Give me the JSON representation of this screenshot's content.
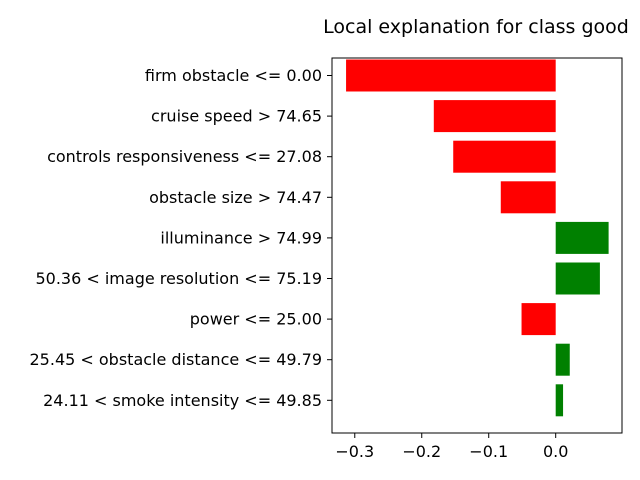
{
  "chart_data": {
    "type": "bar",
    "orientation": "horizontal",
    "title": "Local explanation for class good",
    "xlabel": "",
    "ylabel": "",
    "grid": false,
    "categories": [
      "firm obstacle <= 0.00",
      "cruise speed > 74.65",
      "controls responsiveness <= 27.08",
      "obstacle size > 74.47",
      "illuminance > 74.99",
      "50.36 < image resolution <= 75.19",
      "power <= 25.00",
      "25.45 < obstacle distance <= 49.79",
      "24.11 < smoke intensity <= 49.85"
    ],
    "values": [
      -0.313,
      -0.182,
      -0.153,
      -0.082,
      0.079,
      0.066,
      -0.051,
      0.021,
      0.011
    ],
    "xlim": [
      -0.334,
      0.099
    ],
    "xticks": [
      -0.3,
      -0.2,
      -0.1,
      0.0
    ],
    "xtick_labels": [
      "−0.3",
      "−0.2",
      "−0.1",
      "0.0"
    ],
    "colors": {
      "positive": "#008000",
      "negative": "#ff0000",
      "axis": "#000000"
    }
  }
}
